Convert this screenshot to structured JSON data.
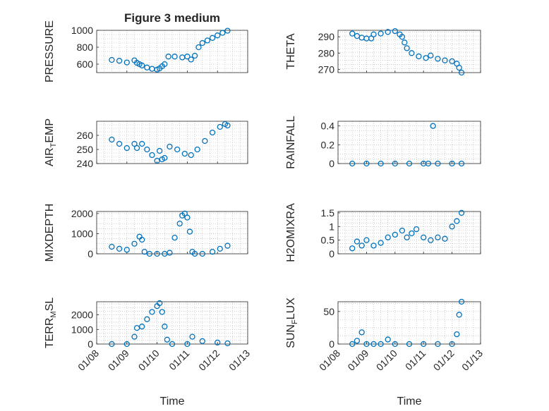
{
  "figure": {
    "title": "Figure 3 medium",
    "marker_color": "#0072BD",
    "x_tick_labels": [
      "01/08",
      "01/09",
      "01/10",
      "01/11",
      "01/12",
      "01/13"
    ],
    "x_label": "Time"
  },
  "chart_data": [
    {
      "type": "scatter",
      "title": "Figure 3 medium",
      "ylabel": "PRESSURE",
      "xlabel": "",
      "ylim": [
        500,
        1000
      ],
      "yticks": [
        600,
        800,
        1000
      ],
      "grid": true,
      "x": [
        "01/08 12:00",
        "01/08 18:00",
        "01/09 00:00",
        "01/09 06:00",
        "01/09 08:00",
        "01/09 10:00",
        "01/09 12:00",
        "01/09 16:00",
        "01/09 20:00",
        "01/10 00:00",
        "01/10 02:00",
        "01/10 04:00",
        "01/10 06:00",
        "01/10 09:00",
        "01/10 14:00",
        "01/10 20:00",
        "01/11 00:00",
        "01/11 03:00",
        "01/11 06:00",
        "01/11 09:00",
        "01/11 12:00",
        "01/11 16:00",
        "01/11 20:00",
        "01/12 00:00",
        "01/12 04:00",
        "01/12 08:00"
      ],
      "y": [
        650,
        640,
        620,
        645,
        615,
        600,
        585,
        560,
        545,
        535,
        550,
        575,
        600,
        690,
        690,
        680,
        690,
        655,
        700,
        800,
        850,
        880,
        910,
        940,
        970,
        995
      ]
    },
    {
      "type": "scatter",
      "title": "",
      "ylabel": "THETA",
      "xlabel": "",
      "ylim": [
        268,
        294
      ],
      "yticks": [
        270,
        280,
        290
      ],
      "grid": true,
      "x": [
        "01/08 12:00",
        "01/08 16:00",
        "01/08 20:00",
        "01/09 00:00",
        "01/09 04:00",
        "01/09 06:00",
        "01/09 12:00",
        "01/09 18:00",
        "01/10 00:00",
        "01/10 04:00",
        "01/10 06:00",
        "01/10 08:00",
        "01/10 10:00",
        "01/10 14:00",
        "01/10 20:00",
        "01/11 02:00",
        "01/11 06:00",
        "01/11 12:00",
        "01/11 18:00",
        "01/12 00:00",
        "01/12 04:00",
        "01/12 06:00",
        "01/12 08:00"
      ],
      "y": [
        292,
        290.5,
        289.5,
        289,
        289,
        291.5,
        292,
        293,
        293.5,
        291.5,
        290,
        286.5,
        283,
        280,
        278,
        277,
        278.5,
        276.5,
        275.5,
        275,
        273.5,
        271,
        268
      ]
    },
    {
      "type": "scatter",
      "title": "",
      "ylabel": "AIR_TEMP",
      "xlabel": "",
      "ylim": [
        240,
        270
      ],
      "yticks": [
        240,
        250,
        260
      ],
      "grid": true,
      "x": [
        "01/08 12:00",
        "01/08 18:00",
        "01/09 00:00",
        "01/09 06:00",
        "01/09 08:00",
        "01/09 12:00",
        "01/09 16:00",
        "01/09 20:00",
        "01/10 00:00",
        "01/10 02:00",
        "01/10 04:00",
        "01/10 06:00",
        "01/10 10:00",
        "01/10 16:00",
        "01/10 22:00",
        "01/11 03:00",
        "01/11 08:00",
        "01/11 14:00",
        "01/11 20:00",
        "01/12 02:00",
        "01/12 06:00",
        "01/12 08:00"
      ],
      "y": [
        257,
        254,
        251,
        254,
        251,
        254,
        250,
        246,
        242,
        249,
        243,
        244,
        252,
        250,
        247,
        246,
        250,
        256,
        262,
        266,
        268,
        267
      ]
    },
    {
      "type": "scatter",
      "title": "",
      "ylabel": "RAINFALL",
      "xlabel": "",
      "ylim": [
        0,
        0.45
      ],
      "yticks": [
        0,
        0.2,
        0.4
      ],
      "grid": true,
      "x": [
        "01/08 12:00",
        "01/09 00:00",
        "01/09 12:00",
        "01/10 00:00",
        "01/10 12:00",
        "01/11 00:00",
        "01/11 04:00",
        "01/11 08:00",
        "01/11 12:00",
        "01/12 00:00",
        "01/12 08:00"
      ],
      "y": [
        0,
        0,
        0,
        0,
        0,
        0,
        0,
        0.4,
        0,
        0,
        0
      ]
    },
    {
      "type": "scatter",
      "title": "",
      "ylabel": "MIXDEPTH",
      "xlabel": "",
      "ylim": [
        0,
        2100
      ],
      "yticks": [
        0,
        1000,
        2000
      ],
      "grid": true,
      "x": [
        "01/08 12:00",
        "01/08 18:00",
        "01/09 00:00",
        "01/09 06:00",
        "01/09 10:00",
        "01/09 12:00",
        "01/09 14:00",
        "01/09 18:00",
        "01/10 00:00",
        "01/10 06:00",
        "01/10 10:00",
        "01/10 14:00",
        "01/10 18:00",
        "01/10 20:00",
        "01/10 22:00",
        "01/11 00:00",
        "01/11 02:00",
        "01/11 04:00",
        "01/11 06:00",
        "01/11 12:00",
        "01/11 20:00",
        "01/12 02:00",
        "01/12 08:00"
      ],
      "y": [
        350,
        250,
        200,
        500,
        850,
        700,
        100,
        0,
        0,
        0,
        50,
        800,
        1500,
        1900,
        2000,
        1800,
        1100,
        100,
        0,
        0,
        100,
        250,
        400
      ]
    },
    {
      "type": "scatter",
      "title": "",
      "ylabel": "H2OMIXRA",
      "xlabel": "",
      "ylim": [
        0,
        1.55
      ],
      "yticks": [
        0,
        0.5,
        1,
        1.5
      ],
      "grid": true,
      "x": [
        "01/08 12:00",
        "01/08 16:00",
        "01/08 20:00",
        "01/09 00:00",
        "01/09 06:00",
        "01/09 12:00",
        "01/09 18:00",
        "01/10 00:00",
        "01/10 06:00",
        "01/10 10:00",
        "01/10 14:00",
        "01/10 18:00",
        "01/11 00:00",
        "01/11 06:00",
        "01/11 12:00",
        "01/11 18:00",
        "01/12 00:00",
        "01/12 04:00",
        "01/12 08:00"
      ],
      "y": [
        0.2,
        0.45,
        0.3,
        0.5,
        0.3,
        0.4,
        0.6,
        0.7,
        0.85,
        0.6,
        0.75,
        0.9,
        0.6,
        0.5,
        0.6,
        0.55,
        1.0,
        1.2,
        1.5
      ]
    },
    {
      "type": "scatter",
      "title": "",
      "ylabel": "TERR_MSL",
      "xlabel": "Time",
      "ylim": [
        0,
        2900
      ],
      "yticks": [
        0,
        1000,
        2000
      ],
      "grid": true,
      "x": [
        "01/08 12:00",
        "01/09 00:00",
        "01/09 06:00",
        "01/09 08:00",
        "01/09 12:00",
        "01/09 16:00",
        "01/09 20:00",
        "01/10 00:00",
        "01/10 02:00",
        "01/10 04:00",
        "01/10 06:00",
        "01/10 08:00",
        "01/10 12:00",
        "01/11 00:00",
        "01/11 04:00",
        "01/11 12:00",
        "01/12 00:00",
        "01/12 08:00"
      ],
      "y": [
        0,
        0,
        500,
        1100,
        1200,
        1700,
        2200,
        2600,
        2800,
        2200,
        1200,
        300,
        0,
        0,
        500,
        200,
        100,
        50
      ]
    },
    {
      "type": "scatter",
      "title": "",
      "ylabel": "SUN_FLUX",
      "xlabel": "Time",
      "ylim": [
        0,
        65
      ],
      "yticks": [
        0,
        50
      ],
      "grid": true,
      "x": [
        "01/08 12:00",
        "01/08 16:00",
        "01/08 20:00",
        "01/09 00:00",
        "01/09 06:00",
        "01/09 12:00",
        "01/09 18:00",
        "01/10 00:00",
        "01/10 12:00",
        "01/11 00:00",
        "01/11 12:00",
        "01/12 00:00",
        "01/12 04:00",
        "01/12 06:00",
        "01/12 08:00"
      ],
      "y": [
        0,
        5,
        18,
        0,
        0,
        0,
        7,
        0,
        0,
        0,
        0,
        0,
        15,
        45,
        65
      ]
    }
  ]
}
